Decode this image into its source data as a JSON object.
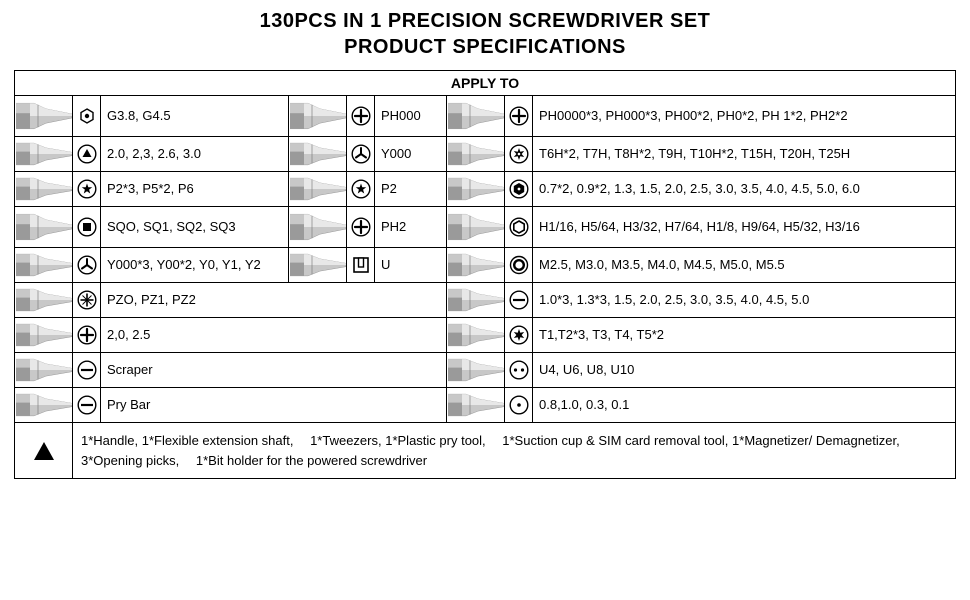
{
  "title_line1": "130PCS IN 1 PRECISION SCREWDRIVER SET",
  "title_line2": "PRODUCT SPECIFICATIONS",
  "apply_to": "APPLY TO",
  "colors": {
    "bit_light": "#e8e8e8",
    "bit_mid": "#c8c8c8",
    "bit_dark": "#9a9a9a",
    "bit_darker": "#707070",
    "icon_stroke": "#000000"
  },
  "rows": [
    {
      "c1": "G3.8, G4.5",
      "i1": "hex-socket",
      "c2": "PH000",
      "i2": "phillips",
      "c3": "PH0000*3, PH000*3, PH00*2, PH0*2, PH 1*2, PH2*2",
      "i3": "phillips"
    },
    {
      "c1": "2.0, 2,3, 2.6, 3.0",
      "i1": "triangle-in-circle",
      "c2": "Y000",
      "i2": "triwing",
      "c3": "T6H*2, T7H, T8H*2, T9H, T10H*2, T15H, T20H, T25H",
      "i3": "torx-security"
    },
    {
      "c1": "P2*3, P5*2, P6",
      "i1": "pentalobe",
      "c2": "P2",
      "i2": "pentalobe",
      "c3": "0.7*2, 0.9*2, 1.3, 1.5, 2.0, 2.5, 3.0, 3.5, 4.0, 4.5, 5.0, 6.0",
      "i3": "hex-dot"
    },
    {
      "c1": "SQO, SQ1, SQ2, SQ3",
      "i1": "square",
      "c2": "PH2",
      "i2": "phillips",
      "c3": "H1/16, H5/64, H3/32, H7/64, H1/8, H9/64, H5/32, H3/16",
      "i3": "hex-outline"
    },
    {
      "c1": "Y000*3, Y00*2, Y0, Y1, Y2",
      "i1": "triwing",
      "c2": "U",
      "i2": "u-shape",
      "c3": "M2.5, M3.0, M3.5, M4.0, M4.5, M5.0, M5.5",
      "i3": "circle-bold"
    },
    {
      "c1": "PZO, PZ1, PZ2",
      "i1": "pozidriv",
      "c3": "1.0*3, 1.3*3, 1.5, 2.0, 2.5, 3.0, 3.5, 4.0, 4.5, 5.0",
      "i3": "slot"
    },
    {
      "c1": "2,0, 2.5",
      "i1": "phillips",
      "c3": "T1,T2*3, T3, T4, T5*2",
      "i3": "torx"
    },
    {
      "c1": "Scraper",
      "i1": "slot",
      "c3": "U4, U6, U8, U10",
      "i3": "two-dots"
    },
    {
      "c1": "Pry Bar",
      "i1": "slot",
      "c3": "0.8,1.0, 0.3, 0.1",
      "i3": "dot-in-circle"
    }
  ],
  "footer": "1*Handle, 1*Flexible extension shaft,  1*Tweezers, 1*Plastic pry tool,  1*Suction cup & SIM card removal tool, 1*Magnetizer/ Demagnetizer, 3*Opening picks,  1*Bit holder for the powered screwdriver"
}
